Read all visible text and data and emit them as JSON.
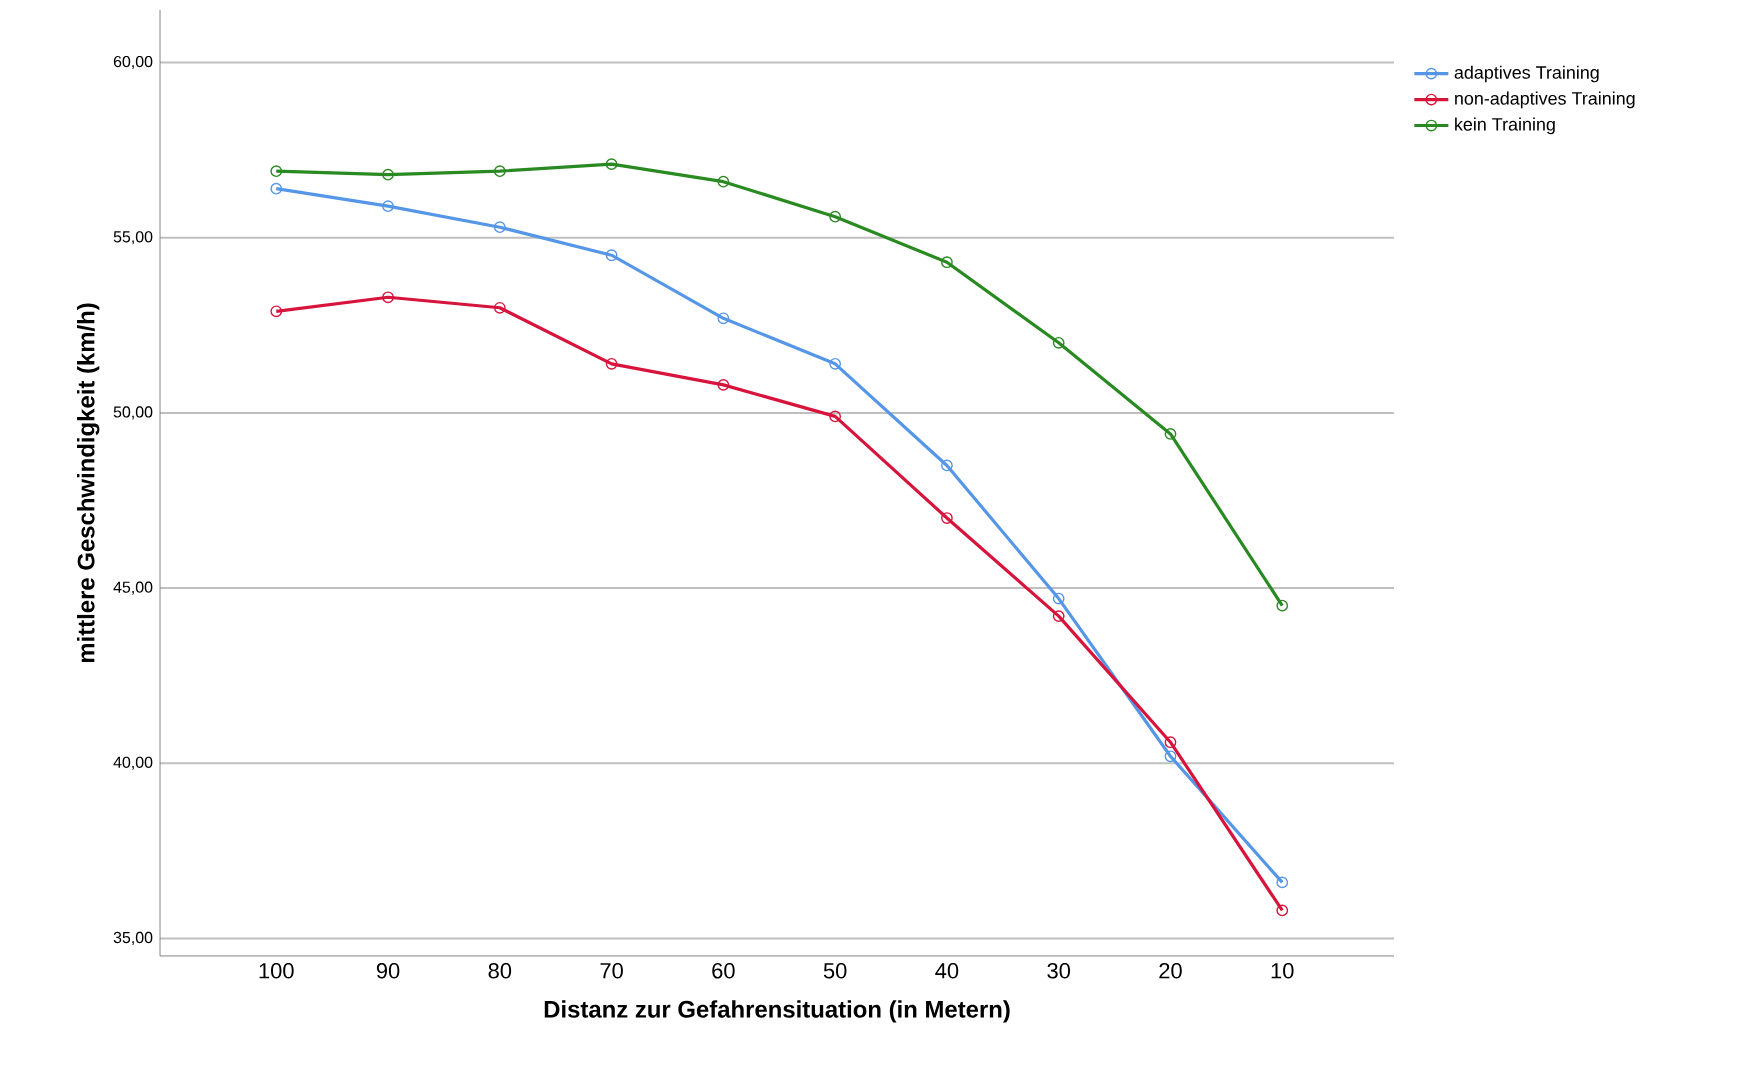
{
  "chart_data": {
    "type": "line",
    "xlabel": "Distanz zur Gefahrensituation (in Metern)",
    "ylabel": "mittlere Geschwindigkeit (km/h)",
    "categories": [
      "100",
      "90",
      "80",
      "70",
      "60",
      "50",
      "40",
      "30",
      "20",
      "10"
    ],
    "series": [
      {
        "name": "adaptives Training",
        "color": "#5596e6",
        "values": [
          56.4,
          55.9,
          55.3,
          54.5,
          52.7,
          51.4,
          48.5,
          44.7,
          40.2,
          36.6
        ]
      },
      {
        "name": "non-adaptives Training",
        "color": "#d7143c",
        "values": [
          52.9,
          53.3,
          53.0,
          51.4,
          50.8,
          49.9,
          47.0,
          44.2,
          40.6,
          35.8
        ]
      },
      {
        "name": "kein Training",
        "color": "#2a8a22",
        "values": [
          56.9,
          56.8,
          56.9,
          57.1,
          56.6,
          55.6,
          54.3,
          52.0,
          49.4,
          44.5
        ]
      }
    ],
    "ylim": [
      34.5,
      61.5
    ],
    "yticks": [
      {
        "value": 35,
        "label": "35,00"
      },
      {
        "value": 40,
        "label": "40,00"
      },
      {
        "value": 45,
        "label": "45,00"
      },
      {
        "value": 50,
        "label": "50,00"
      },
      {
        "value": 55,
        "label": "55,00"
      },
      {
        "value": 60,
        "label": "60,00"
      }
    ],
    "grid": "y",
    "legend": "top right",
    "marker": "circle",
    "line_style": "solid"
  }
}
